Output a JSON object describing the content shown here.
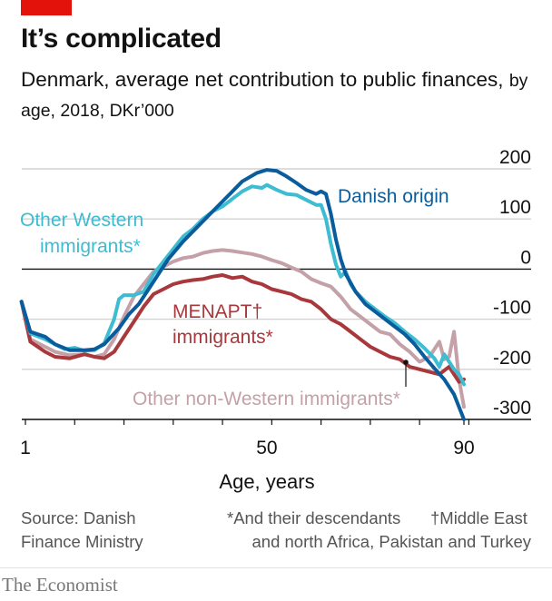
{
  "header": {
    "title": "It’s complicated",
    "subtitle_main": "Denmark, average net contribution to public finances,",
    "subtitle_detail": "by age, 2018, DKr’000"
  },
  "chart_data": {
    "type": "line",
    "xlabel": "Age, years",
    "ylabel": "",
    "xlim": [
      0,
      92
    ],
    "ylim": [
      -300,
      200
    ],
    "x_ticks": [
      1,
      50,
      90
    ],
    "y_ticks": [
      200,
      100,
      0,
      -100,
      -200,
      -300
    ],
    "grid": "horizontal",
    "series": [
      {
        "name": "Danish origin",
        "color": "#0b5c9c",
        "points": [
          [
            0,
            -65
          ],
          [
            2,
            -125
          ],
          [
            5,
            -135
          ],
          [
            7,
            -150
          ],
          [
            10,
            -162
          ],
          [
            13,
            -162
          ],
          [
            15,
            -160
          ],
          [
            17,
            -150
          ],
          [
            20,
            -118
          ],
          [
            22,
            -90
          ],
          [
            24,
            -70
          ],
          [
            26,
            -40
          ],
          [
            28,
            -10
          ],
          [
            30,
            20
          ],
          [
            33,
            55
          ],
          [
            36,
            85
          ],
          [
            39,
            115
          ],
          [
            42,
            145
          ],
          [
            45,
            175
          ],
          [
            48,
            192
          ],
          [
            50,
            198
          ],
          [
            52,
            196
          ],
          [
            54,
            185
          ],
          [
            56,
            172
          ],
          [
            58,
            158
          ],
          [
            60,
            150
          ],
          [
            61,
            155
          ],
          [
            62,
            150
          ],
          [
            63,
            110
          ],
          [
            64,
            60
          ],
          [
            65,
            20
          ],
          [
            66,
            -10
          ],
          [
            68,
            -45
          ],
          [
            70,
            -70
          ],
          [
            72,
            -85
          ],
          [
            74,
            -100
          ],
          [
            76,
            -115
          ],
          [
            78,
            -130
          ],
          [
            80,
            -150
          ],
          [
            82,
            -175
          ],
          [
            84,
            -198
          ],
          [
            86,
            -220
          ],
          [
            88,
            -250
          ],
          [
            90,
            -300
          ]
        ]
      },
      {
        "name": "Other Western immigrants*",
        "color": "#3ebcd2",
        "points": [
          [
            0,
            -65
          ],
          [
            2,
            -128
          ],
          [
            5,
            -140
          ],
          [
            7,
            -150
          ],
          [
            9,
            -160
          ],
          [
            11,
            -157
          ],
          [
            13,
            -163
          ],
          [
            15,
            -162
          ],
          [
            17,
            -148
          ],
          [
            19,
            -100
          ],
          [
            20,
            -60
          ],
          [
            21,
            -52
          ],
          [
            23,
            -52
          ],
          [
            25,
            -45
          ],
          [
            27,
            -10
          ],
          [
            29,
            15
          ],
          [
            31,
            40
          ],
          [
            33,
            65
          ],
          [
            35,
            80
          ],
          [
            37,
            100
          ],
          [
            39,
            115
          ],
          [
            41,
            125
          ],
          [
            43,
            140
          ],
          [
            45,
            155
          ],
          [
            47,
            165
          ],
          [
            49,
            162
          ],
          [
            50,
            168
          ],
          [
            52,
            158
          ],
          [
            54,
            150
          ],
          [
            56,
            148
          ],
          [
            58,
            138
          ],
          [
            60,
            128
          ],
          [
            61,
            128
          ],
          [
            62,
            100
          ],
          [
            63,
            50
          ],
          [
            64,
            10
          ],
          [
            65,
            -15
          ],
          [
            66,
            -5
          ],
          [
            67,
            -30
          ],
          [
            68,
            -45
          ],
          [
            70,
            -65
          ],
          [
            72,
            -80
          ],
          [
            74,
            -95
          ],
          [
            76,
            -108
          ],
          [
            78,
            -125
          ],
          [
            80,
            -140
          ],
          [
            82,
            -158
          ],
          [
            84,
            -178
          ],
          [
            85,
            -195
          ],
          [
            86,
            -170
          ],
          [
            87,
            -185
          ],
          [
            88,
            -200
          ],
          [
            89,
            -210
          ],
          [
            90,
            -230
          ]
        ]
      },
      {
        "name": "Other non-Western immigrants*",
        "color": "#c4a1a8",
        "points": [
          [
            0,
            -65
          ],
          [
            2,
            -140
          ],
          [
            5,
            -155
          ],
          [
            7,
            -165
          ],
          [
            10,
            -172
          ],
          [
            13,
            -170
          ],
          [
            15,
            -175
          ],
          [
            17,
            -170
          ],
          [
            19,
            -140
          ],
          [
            21,
            -95
          ],
          [
            23,
            -55
          ],
          [
            25,
            -30
          ],
          [
            27,
            -5
          ],
          [
            29,
            5
          ],
          [
            31,
            15
          ],
          [
            33,
            22
          ],
          [
            35,
            25
          ],
          [
            37,
            32
          ],
          [
            39,
            36
          ],
          [
            41,
            38
          ],
          [
            43,
            36
          ],
          [
            45,
            33
          ],
          [
            47,
            30
          ],
          [
            49,
            25
          ],
          [
            51,
            18
          ],
          [
            53,
            12
          ],
          [
            55,
            3
          ],
          [
            57,
            -5
          ],
          [
            59,
            -20
          ],
          [
            61,
            -28
          ],
          [
            63,
            -35
          ],
          [
            65,
            -55
          ],
          [
            67,
            -80
          ],
          [
            69,
            -95
          ],
          [
            71,
            -110
          ],
          [
            73,
            -125
          ],
          [
            75,
            -130
          ],
          [
            77,
            -150
          ],
          [
            79,
            -165
          ],
          [
            81,
            -185
          ],
          [
            83,
            -175
          ],
          [
            85,
            -145
          ],
          [
            86,
            -180
          ],
          [
            87,
            -175
          ],
          [
            88,
            -125
          ],
          [
            89,
            -220
          ],
          [
            90,
            -275
          ]
        ]
      },
      {
        "name": "MENAPT† immigrants*",
        "color": "#a8383b",
        "points": [
          [
            0,
            -65
          ],
          [
            2,
            -145
          ],
          [
            5,
            -165
          ],
          [
            7,
            -175
          ],
          [
            10,
            -178
          ],
          [
            13,
            -170
          ],
          [
            15,
            -175
          ],
          [
            17,
            -178
          ],
          [
            19,
            -165
          ],
          [
            21,
            -135
          ],
          [
            23,
            -105
          ],
          [
            25,
            -75
          ],
          [
            27,
            -50
          ],
          [
            29,
            -40
          ],
          [
            31,
            -30
          ],
          [
            33,
            -25
          ],
          [
            35,
            -22
          ],
          [
            37,
            -20
          ],
          [
            39,
            -15
          ],
          [
            41,
            -12
          ],
          [
            43,
            -18
          ],
          [
            45,
            -15
          ],
          [
            47,
            -25
          ],
          [
            49,
            -30
          ],
          [
            51,
            -40
          ],
          [
            53,
            -45
          ],
          [
            55,
            -50
          ],
          [
            57,
            -60
          ],
          [
            59,
            -65
          ],
          [
            61,
            -80
          ],
          [
            63,
            -100
          ],
          [
            65,
            -110
          ],
          [
            67,
            -125
          ],
          [
            69,
            -140
          ],
          [
            71,
            -155
          ],
          [
            73,
            -165
          ],
          [
            75,
            -175
          ],
          [
            77,
            -180
          ],
          [
            79,
            -195
          ],
          [
            81,
            -200
          ],
          [
            83,
            -205
          ],
          [
            85,
            -210
          ],
          [
            87,
            -195
          ],
          [
            89,
            -225
          ],
          [
            90,
            -220
          ]
        ]
      }
    ],
    "annotations": {
      "danish_origin": "Danish origin",
      "other_western_line1": "Other Western",
      "other_western_line2": "immigrants*",
      "menapt_line1": "MENAPT†",
      "menapt_line2": "immigrants*",
      "other_non_western": "Other non-Western immigrants*"
    }
  },
  "footer": {
    "source_line1": "Source: Danish",
    "source_line2": "Finance Ministry",
    "note_descendants": "*And their descendants",
    "note_menapt_line1": "†Middle East",
    "note_menapt_line2": "and north Africa, Pakistan and Turkey",
    "brand": "The Economist"
  }
}
